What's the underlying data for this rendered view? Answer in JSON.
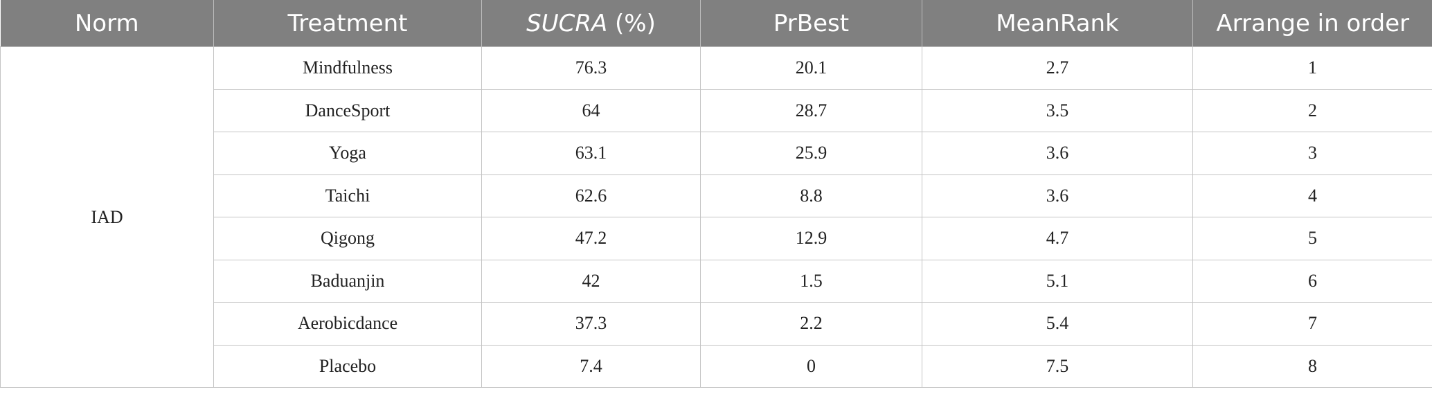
{
  "table": {
    "headers": {
      "norm": "Norm",
      "treatment": "Treatment",
      "sucra_italic": "SUCRA",
      "sucra_unit": " (%)",
      "prbest": "PrBest",
      "meanrank": "MeanRank",
      "order": "Arrange in order"
    },
    "norm_value": "IAD",
    "rows": [
      {
        "treatment": "Mindfulness",
        "sucra": "76.3",
        "prbest": "20.1",
        "meanrank": "2.7",
        "order": "1"
      },
      {
        "treatment": "DanceSport",
        "sucra": "64",
        "prbest": "28.7",
        "meanrank": "3.5",
        "order": "2"
      },
      {
        "treatment": "Yoga",
        "sucra": "63.1",
        "prbest": "25.9",
        "meanrank": "3.6",
        "order": "3"
      },
      {
        "treatment": "Taichi",
        "sucra": "62.6",
        "prbest": "8.8",
        "meanrank": "3.6",
        "order": "4"
      },
      {
        "treatment": "Qigong",
        "sucra": "47.2",
        "prbest": "12.9",
        "meanrank": "4.7",
        "order": "5"
      },
      {
        "treatment": "Baduanjin",
        "sucra": "42",
        "prbest": "1.5",
        "meanrank": "5.1",
        "order": "6"
      },
      {
        "treatment": "Aerobicdance",
        "sucra": "37.3",
        "prbest": "2.2",
        "meanrank": "5.4",
        "order": "7"
      },
      {
        "treatment": "Placebo",
        "sucra": "7.4",
        "prbest": "0",
        "meanrank": "7.5",
        "order": "8"
      }
    ]
  },
  "colors": {
    "header_bg": "#808080",
    "header_text": "#ffffff",
    "grid_line": "#c4c4c4",
    "cell_text": "#222222"
  }
}
